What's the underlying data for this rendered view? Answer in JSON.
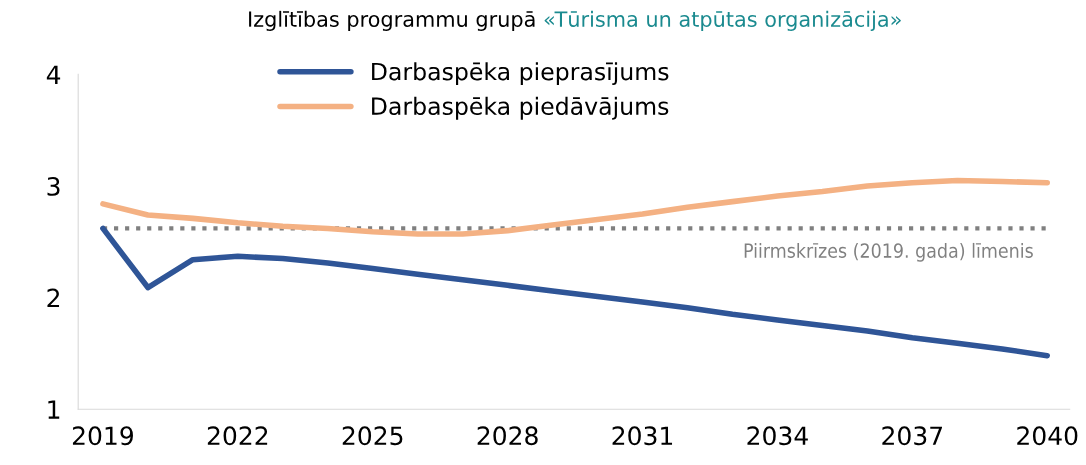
{
  "chart_data": {
    "type": "line",
    "title": "Izglītības programmu grupā",
    "subtitle": "«Tūrisma un atpūtas organizācija»",
    "x": [
      2019,
      2020,
      2021,
      2022,
      2023,
      2024,
      2025,
      2026,
      2027,
      2028,
      2029,
      2030,
      2031,
      2032,
      2033,
      2034,
      2035,
      2036,
      2037,
      2038,
      2039,
      2040
    ],
    "series": [
      {
        "name": "Darbaspēka pieprasījums",
        "color": "#2f5597",
        "values": [
          2.62,
          2.09,
          2.34,
          2.37,
          2.35,
          2.31,
          2.26,
          2.21,
          2.16,
          2.11,
          2.06,
          2.01,
          1.96,
          1.91,
          1.85,
          1.8,
          1.75,
          1.7,
          1.64,
          1.59,
          1.54,
          1.48
        ]
      },
      {
        "name": "Darbaspēka piedāvājums",
        "color": "#f4b183",
        "values": [
          2.84,
          2.74,
          2.71,
          2.67,
          2.64,
          2.62,
          2.59,
          2.57,
          2.57,
          2.6,
          2.65,
          2.7,
          2.75,
          2.81,
          2.86,
          2.91,
          2.95,
          3.0,
          3.03,
          3.05,
          3.04,
          3.03
        ]
      }
    ],
    "xlim": [
      2018.45,
      2040.5
    ],
    "xticks": [
      2019,
      2022,
      2025,
      2028,
      2031,
      2034,
      2037,
      2040
    ],
    "ylim": [
      1,
      4
    ],
    "yticks": [
      1,
      2,
      3,
      4
    ],
    "ref_lines": [
      {
        "axis": "y",
        "value": 2.62,
        "label": "Piirmskrīzes (2019. gada) līmenis",
        "color": "#808080",
        "line_style": "dotted"
      }
    ],
    "grid": false,
    "legend": "top",
    "line_style": "solid",
    "marker": "none"
  }
}
